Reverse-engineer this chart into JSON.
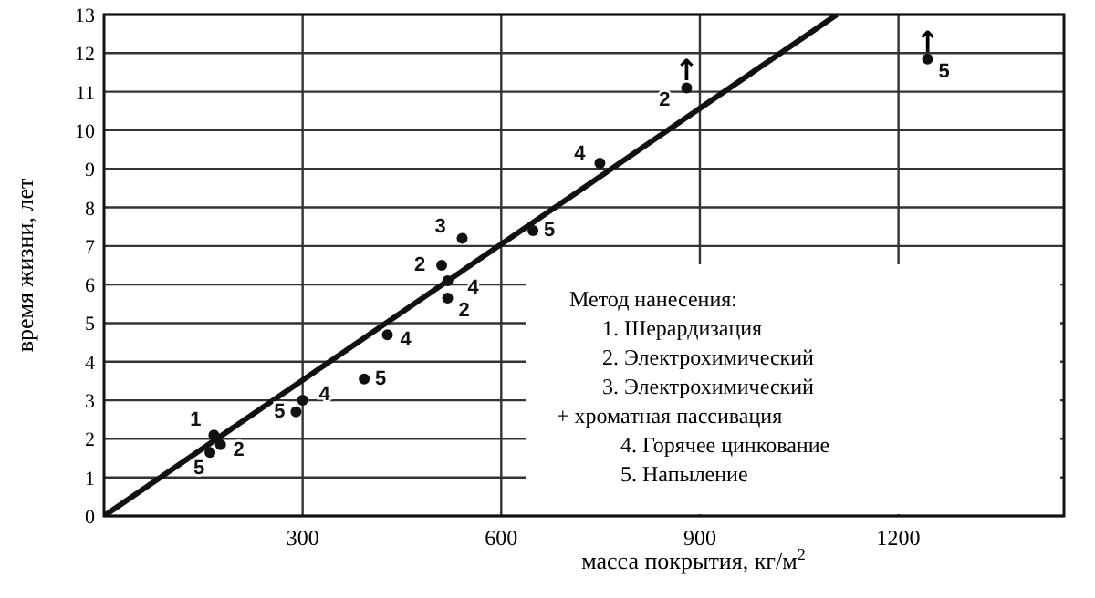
{
  "chart_data": {
    "type": "scatter",
    "xlabel": "масса покрытия, кг/м$^{2}$",
    "ylabel": "время жизни, лет",
    "xlim": [
      0,
      1450
    ],
    "ylim": [
      0,
      13
    ],
    "xticks": [
      300,
      600,
      900,
      1200
    ],
    "yticks": [
      0,
      1,
      2,
      3,
      4,
      5,
      6,
      7,
      8,
      9,
      10,
      11,
      12,
      13
    ],
    "grid": true,
    "marker": "circle",
    "series": [
      {
        "name": "1",
        "color": "#111111",
        "x": [
          166
        ],
        "values": [
          2.1
        ]
      },
      {
        "name": "2",
        "color": "#111111",
        "x": [
          176,
          519,
          510,
          880
        ],
        "values": [
          1.85,
          5.65,
          6.5,
          11.1
        ]
      },
      {
        "name": "3",
        "color": "#111111",
        "x": [
          541
        ],
        "values": [
          7.2
        ]
      },
      {
        "name": "4",
        "color": "#111111",
        "x": [
          300,
          428,
          519,
          749
        ],
        "values": [
          3.0,
          4.7,
          6.1,
          9.15
        ]
      },
      {
        "name": "5",
        "color": "#111111",
        "x": [
          160,
          290,
          393,
          648,
          1244
        ],
        "values": [
          1.65,
          2.7,
          3.55,
          7.4,
          11.85
        ]
      },
      {
        "type": "line",
        "color": "#111111",
        "marker": "none",
        "x": [
          0,
          1107
        ],
        "values": [
          0,
          13
        ]
      }
    ],
    "annotations": [
      {
        "text": "↑",
        "x": 880,
        "y": 11.1
      },
      {
        "text": "↑",
        "x": 1244,
        "y": 11.85
      },
      "Метод нанесения:",
      "1.  Шерардизация",
      "2.  Электрохимический",
      "3.  Электрохимический",
      "+ хроматная пассивация",
      "4.  Горячее цинкование",
      "5.  Напыление"
    ]
  }
}
